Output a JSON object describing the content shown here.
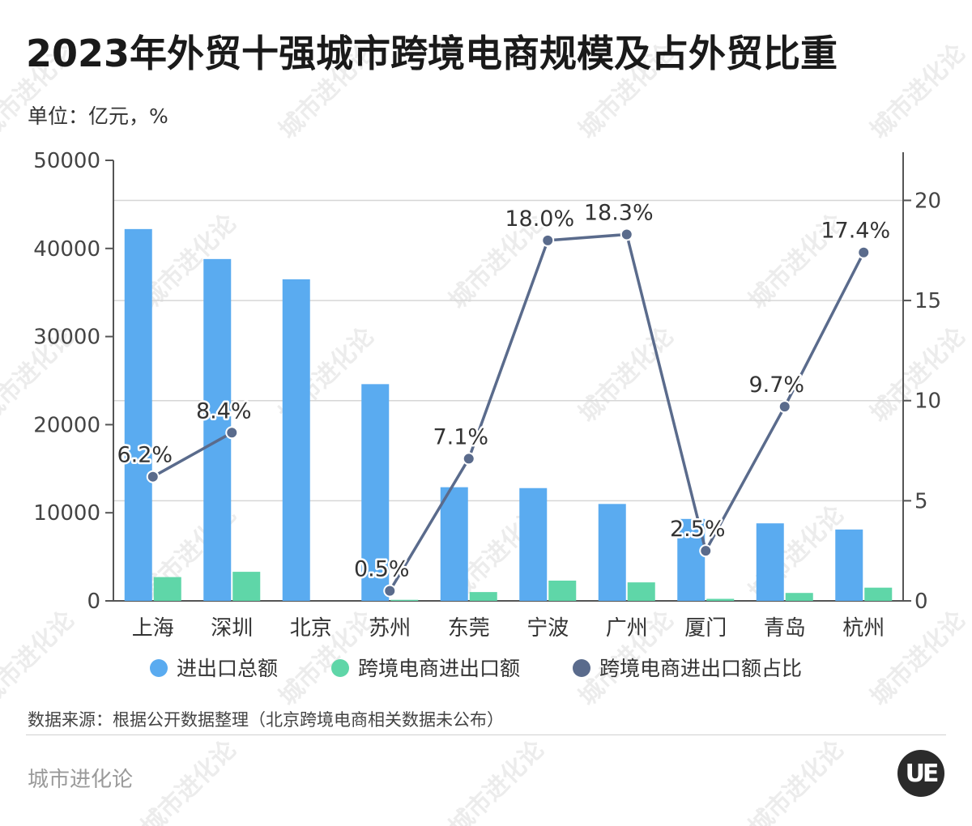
{
  "title": "2023年外贸十强城市跨境电商规模及占外贸比重",
  "unit": "单位：亿元，%",
  "source": "数据来源：根据公开数据整理（北京跨境电商相关数据未公布）",
  "brand": "城市进化论",
  "logo_text": "UE",
  "watermark": "城市进化论",
  "chart_data": {
    "type": "bar",
    "categories": [
      "上海",
      "深圳",
      "北京",
      "苏州",
      "东莞",
      "宁波",
      "广州",
      "厦门",
      "青岛",
      "杭州"
    ],
    "series": [
      {
        "name": "进出口总额",
        "type": "bar",
        "axis": "left",
        "color": "#5aabf0",
        "values": [
          42200,
          38800,
          36500,
          24600,
          12900,
          12800,
          11000,
          9300,
          8800,
          8100
        ]
      },
      {
        "name": "跨境电商进出口额",
        "type": "bar",
        "axis": "left",
        "color": "#5fd6a8",
        "values": [
          2700,
          3300,
          null,
          120,
          1000,
          2300,
          2100,
          230,
          900,
          1500
        ]
      },
      {
        "name": "跨境电商进出口额占比",
        "type": "line",
        "axis": "right",
        "color": "#5a6b8c",
        "values": [
          6.2,
          8.4,
          null,
          0.5,
          7.1,
          18.0,
          18.3,
          2.5,
          9.7,
          17.4
        ],
        "labels": [
          "6.2%",
          "8.4%",
          "",
          "0.5%",
          "7.1%",
          "18.0%",
          "18.3%",
          "2.5%",
          "9.7%",
          "17.4%"
        ]
      }
    ],
    "y_left": {
      "min": 0,
      "max": 50000,
      "ticks": [
        0,
        10000,
        20000,
        30000,
        40000,
        50000
      ]
    },
    "y_right": {
      "min": 0,
      "max": 22,
      "ticks": [
        0,
        5,
        10,
        15,
        20
      ]
    },
    "grid": true,
    "legend_position": "bottom"
  }
}
